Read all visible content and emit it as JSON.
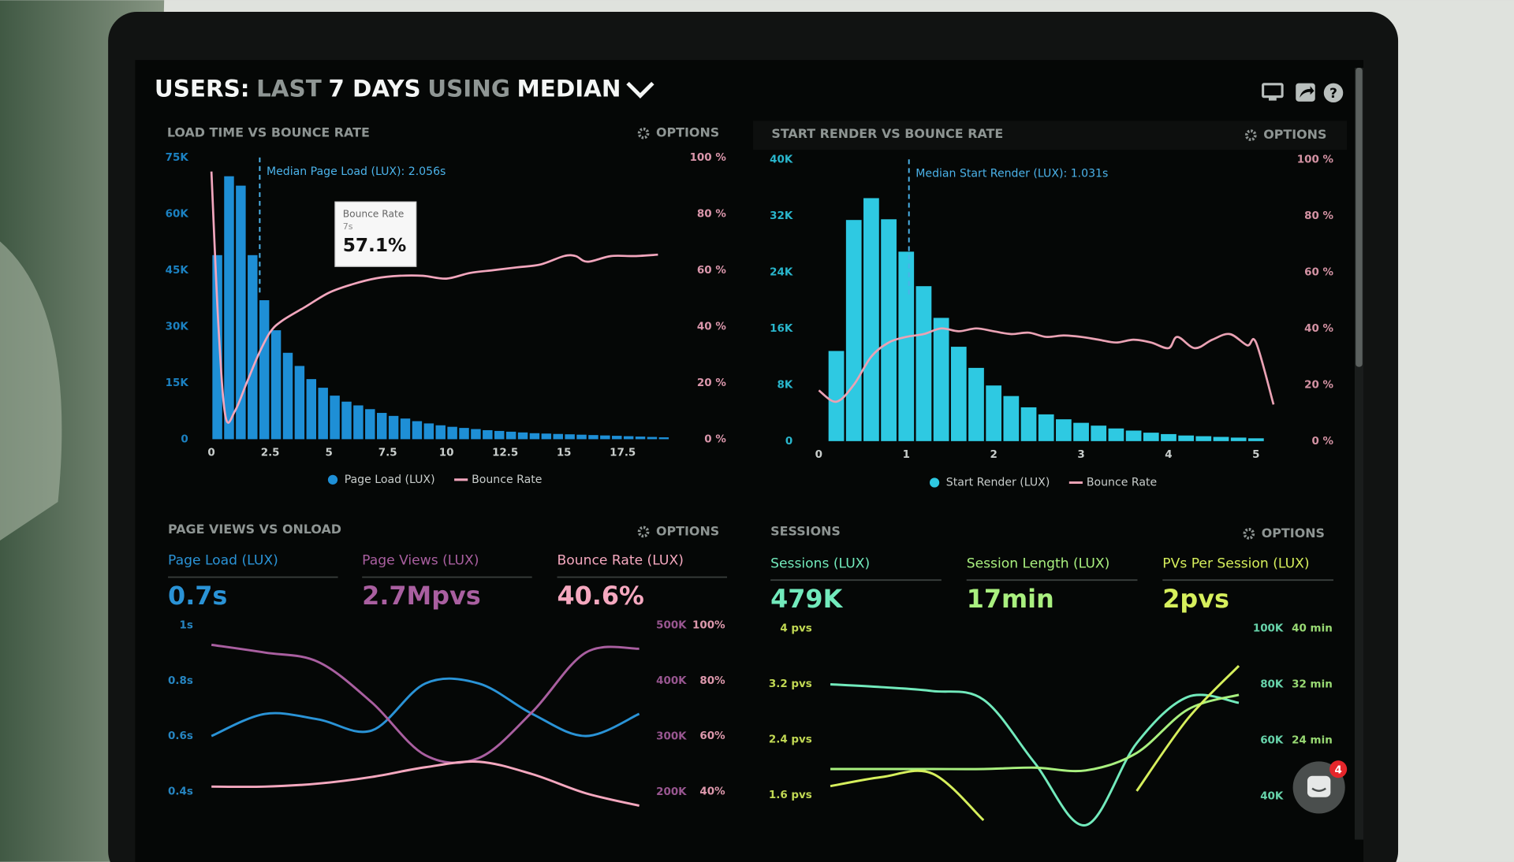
{
  "header": {
    "title_parts": [
      "USERS:",
      "LAST",
      "7 DAYS",
      "USING",
      "MEDIAN"
    ]
  },
  "chat_badge": "4",
  "chart_data": [
    {
      "type": "histogram",
      "title": "LOAD TIME VS BOUNCE RATE",
      "options_label": "OPTIONS",
      "legend": "bottom",
      "bins": [
        0,
        0.5,
        1,
        1.5,
        2,
        2.5,
        3,
        3.5,
        4,
        4.5,
        5,
        5.5,
        6,
        6.5,
        7,
        7.5,
        8,
        8.5,
        9,
        9.5,
        10,
        10.5,
        11,
        11.5,
        12,
        12.5,
        13,
        13.5,
        14,
        14.5,
        15,
        15.5,
        16,
        16.5,
        17,
        17.5,
        18,
        18.5,
        19,
        19.5
      ],
      "series": [
        {
          "name": "Page Load (LUX)",
          "color": "#1e8fd6",
          "values": [
            49000,
            70000,
            67500,
            49000,
            37000,
            29000,
            23000,
            19500,
            16000,
            13700,
            11600,
            10000,
            9000,
            8000,
            7000,
            6200,
            5500,
            4800,
            4200,
            3700,
            3300,
            3000,
            2700,
            2400,
            2200,
            2000,
            1800,
            1600,
            1500,
            1400,
            1300,
            1200,
            1100,
            1000,
            900,
            800,
            700,
            600,
            500
          ]
        },
        {
          "name": "Bounce Rate",
          "color": "#f2a6bd",
          "type": "line",
          "axis": "y2",
          "x": [
            0,
            0.3,
            0.6,
            1,
            1.5,
            2,
            2.5,
            3,
            4,
            5,
            6,
            7,
            8,
            9,
            10,
            11,
            12,
            13,
            14,
            15,
            15.5,
            16,
            17,
            18,
            19
          ],
          "values": [
            95,
            40,
            8,
            10,
            20,
            30,
            38,
            42,
            47,
            52,
            55,
            57.1,
            58,
            58,
            57,
            59,
            60,
            61,
            62,
            65,
            65,
            63,
            65,
            65,
            65.5
          ]
        }
      ],
      "xlim": [
        -0.2,
        19.8
      ],
      "xticks": [
        0,
        2.5,
        5,
        7.5,
        10,
        12.5,
        15,
        17.5
      ],
      "ylim": [
        0,
        75000
      ],
      "yticks": [
        {
          "value": 0,
          "label": "0"
        },
        {
          "value": 15000,
          "label": "15K"
        },
        {
          "value": 30000,
          "label": "30K"
        },
        {
          "value": 45000,
          "label": "45K"
        },
        {
          "value": 60000,
          "label": "60K"
        },
        {
          "value": 75000,
          "label": "75K"
        }
      ],
      "y2lim": [
        0,
        100
      ],
      "y2ticks": [
        {
          "value": 0,
          "label": "0 %"
        },
        {
          "value": 20,
          "label": "20 %"
        },
        {
          "value": 40,
          "label": "40 %"
        },
        {
          "value": 60,
          "label": "60 %"
        },
        {
          "value": 80,
          "label": "80 %"
        },
        {
          "value": 100,
          "label": "100 %"
        }
      ],
      "annotations": [
        {
          "x": 2.056,
          "text": "Median Page Load (LUX): 2.056s"
        }
      ],
      "tooltip": {
        "title": "Bounce Rate",
        "subtitle": "7s",
        "value": "57.1%"
      }
    },
    {
      "type": "histogram",
      "title": "START RENDER VS BOUNCE RATE",
      "options_label": "OPTIONS",
      "legend": "bottom",
      "bins": [
        0.1,
        0.3,
        0.5,
        0.7,
        0.9,
        1.1,
        1.3,
        1.5,
        1.7,
        1.9,
        2.1,
        2.3,
        2.5,
        2.7,
        2.9,
        3.1,
        3.3,
        3.5,
        3.7,
        3.9,
        4.1,
        4.3,
        4.5,
        4.7,
        4.9,
        5.1
      ],
      "series": [
        {
          "name": "Start Render (LUX)",
          "color": "#2ec9e2",
          "values": [
            12800,
            31400,
            34500,
            31500,
            26900,
            22000,
            17500,
            13400,
            10400,
            7900,
            6400,
            4800,
            3800,
            3100,
            2600,
            2200,
            1800,
            1500,
            1200,
            1000,
            800,
            700,
            600,
            500,
            400
          ]
        },
        {
          "name": "Bounce Rate",
          "color": "#eaa2b4",
          "type": "line",
          "axis": "y2",
          "x": [
            0,
            0.2,
            0.4,
            0.6,
            0.8,
            1,
            1.2,
            1.4,
            1.6,
            1.8,
            2,
            2.2,
            2.4,
            2.6,
            2.8,
            3,
            3.2,
            3.4,
            3.6,
            3.8,
            4,
            4.1,
            4.3,
            4.5,
            4.7,
            4.9,
            5,
            5.2
          ],
          "values": [
            18,
            14,
            20,
            30,
            35,
            37,
            38,
            40,
            39,
            40,
            39,
            38,
            38.5,
            37,
            37.5,
            37,
            36,
            35,
            36,
            35,
            33,
            37,
            33,
            36,
            38,
            34,
            35,
            13
          ]
        }
      ],
      "xlim": [
        0,
        5.3
      ],
      "xticks": [
        0,
        1,
        2,
        3,
        4,
        5
      ],
      "ylim": [
        0,
        40000
      ],
      "yticks": [
        {
          "value": 0,
          "label": "0"
        },
        {
          "value": 8000,
          "label": "8K"
        },
        {
          "value": 16000,
          "label": "16K"
        },
        {
          "value": 24000,
          "label": "24K"
        },
        {
          "value": 32000,
          "label": "32K"
        },
        {
          "value": 40000,
          "label": "40K"
        }
      ],
      "y2lim": [
        0,
        100
      ],
      "y2ticks": [
        {
          "value": 0,
          "label": "0 %"
        },
        {
          "value": 20,
          "label": "20 %"
        },
        {
          "value": 40,
          "label": "40 %"
        },
        {
          "value": 60,
          "label": "60 %"
        },
        {
          "value": 80,
          "label": "80 %"
        },
        {
          "value": 100,
          "label": "100 %"
        }
      ],
      "annotations": [
        {
          "x": 1.031,
          "text": "Median Start Render (LUX): 1.031s"
        }
      ]
    },
    {
      "type": "line",
      "title": "PAGE VIEWS VS ONLOAD",
      "options_label": "OPTIONS",
      "categories": [
        null,
        null,
        null,
        null,
        null,
        null,
        null,
        null,
        null
      ],
      "series": [
        {
          "name": "Page Load (LUX)",
          "kpi": "0.7s",
          "color": "#2a93d6",
          "values": [
            0.6,
            0.68,
            0.66,
            0.62,
            0.79,
            0.79,
            0.68,
            0.6,
            0.68
          ]
        },
        {
          "name": "Page Views (LUX)",
          "kpi": "2.7Mpvs",
          "color": "#a95fa0",
          "axis": "y2",
          "values": [
            465000,
            451000,
            434000,
            361000,
            266000,
            261000,
            344000,
            451000,
            458000
          ]
        },
        {
          "name": "Bounce Rate (LUX)",
          "kpi": "40.6%",
          "color": "#f5a8bf",
          "axis": "y3",
          "values": [
            41.7,
            41.7,
            42.8,
            45.2,
            48.7,
            50.7,
            46.2,
            39.3,
            34.8
          ]
        }
      ],
      "ylim": [
        0.33,
        1
      ],
      "yticks": [
        {
          "value": 1,
          "label": "1s"
        },
        {
          "value": 0.8,
          "label": "0.8s"
        },
        {
          "value": 0.6,
          "label": "0.6s"
        },
        {
          "value": 0.4,
          "label": "0.4s"
        }
      ],
      "y2lim": [
        166000,
        500000
      ],
      "y2ticks": [
        {
          "value": 500000,
          "label": "500K"
        },
        {
          "value": 400000,
          "label": "400K"
        },
        {
          "value": 300000,
          "label": "300K"
        },
        {
          "value": 200000,
          "label": "200K"
        }
      ],
      "y3lim": [
        33,
        100
      ],
      "y3ticks": [
        {
          "value": 100,
          "label": "100%"
        },
        {
          "value": 80,
          "label": "80%"
        },
        {
          "value": 60,
          "label": "60%"
        },
        {
          "value": 40,
          "label": "40%"
        }
      ]
    },
    {
      "type": "line",
      "title": "SESSIONS",
      "options_label": "OPTIONS",
      "categories": [
        null,
        null,
        null,
        null,
        null,
        null,
        null,
        null,
        null
      ],
      "series": [
        {
          "name": "Sessions (LUX)",
          "kpi": "479K",
          "color": "#72eabc",
          "axis": "y2",
          "values": [
            80000,
            79000,
            77600,
            74500,
            52000,
            29700,
            59000,
            75500,
            73400
          ]
        },
        {
          "name": "Session Length (LUX)",
          "kpi": "17min",
          "color": "#a9f07f",
          "axis": "y3",
          "values": [
            19.9,
            19.9,
            19.9,
            19.9,
            20.1,
            19.7,
            22.2,
            28.4,
            30.5
          ]
        },
        {
          "name": "PVs Per Session (LUX)",
          "kpi": "2pvs",
          "color": "#d6ef5c",
          "values": [
            1.73,
            1.86,
            1.91,
            1.24,
            null,
            null,
            1.66,
            2.7,
            3.46
          ]
        }
      ],
      "ylim": [
        1.1,
        4
      ],
      "yticks": [
        {
          "value": 4,
          "label": "4 pvs"
        },
        {
          "value": 3.2,
          "label": "3.2 pvs"
        },
        {
          "value": 2.4,
          "label": "2.4 pvs"
        },
        {
          "value": 1.6,
          "label": "1.6 pvs"
        }
      ],
      "y2lim": [
        28000,
        100000
      ],
      "y2ticks": [
        {
          "value": 100000,
          "label": "100K"
        },
        {
          "value": 80000,
          "label": "80K"
        },
        {
          "value": 60000,
          "label": "60K"
        },
        {
          "value": 40000,
          "label": "40K"
        }
      ],
      "y3lim": [
        11.2,
        40
      ],
      "y3ticks": [
        {
          "value": 40,
          "label": "40 min"
        },
        {
          "value": 32,
          "label": "32 min"
        },
        {
          "value": 24,
          "label": "24 min"
        }
      ]
    }
  ]
}
